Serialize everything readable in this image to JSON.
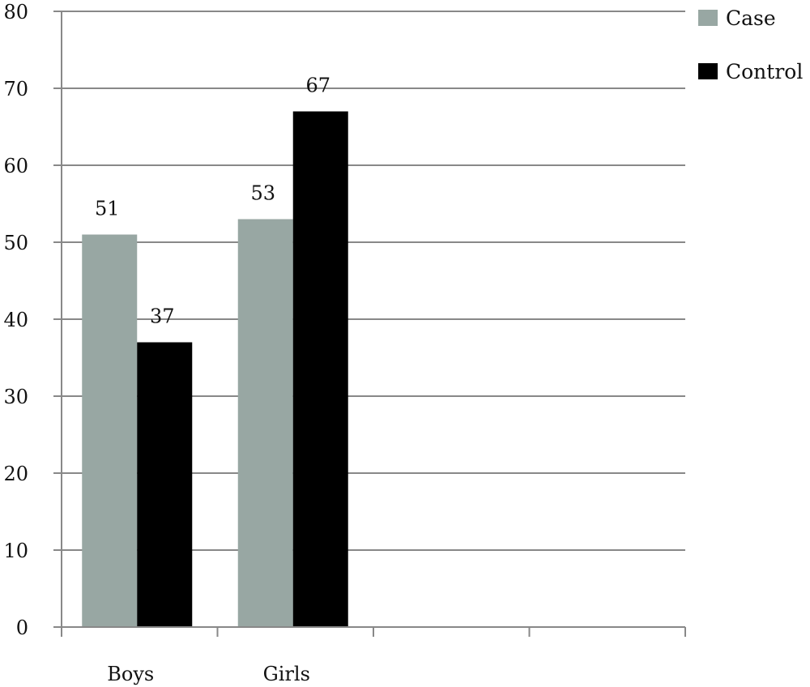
{
  "chart_data": {
    "type": "bar",
    "title": "",
    "xlabel": "",
    "ylabel": "",
    "categories": [
      "Boys",
      "Girls"
    ],
    "slots": 4,
    "series": [
      {
        "name": "Case",
        "values": [
          51,
          53
        ],
        "color": "#98a7a3"
      },
      {
        "name": "Control",
        "values": [
          37,
          67
        ],
        "color": "#000000"
      }
    ],
    "ylim": [
      0,
      80
    ],
    "yticks": [
      0,
      10,
      20,
      30,
      40,
      50,
      60,
      70,
      80
    ],
    "grid": true,
    "legend_position": "top-right",
    "gridline_color": "#888888"
  }
}
